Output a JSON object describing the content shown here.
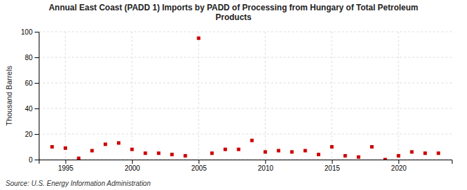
{
  "chart_data": {
    "type": "scatter",
    "title": "Annual East Coast (PADD 1) Imports by PADD of Processing from Hungary of Total Petroleum\nProducts",
    "ylabel": "Thousand Barrels",
    "source": "Source: U.S. Energy Information Administration",
    "x": [
      1994,
      1995,
      1996,
      1997,
      1998,
      1999,
      2000,
      2001,
      2002,
      2003,
      2004,
      2005,
      2006,
      2007,
      2008,
      2009,
      2010,
      2011,
      2012,
      2013,
      2014,
      2015,
      2016,
      2017,
      2018,
      2019,
      2020,
      2021,
      2022,
      2023
    ],
    "values": [
      10,
      9,
      1,
      7,
      12,
      13,
      8,
      5,
      5,
      4,
      3,
      95,
      5,
      8,
      8,
      15,
      6,
      7,
      6,
      7,
      4,
      10,
      3,
      2,
      10,
      0,
      3,
      6,
      5,
      5
    ],
    "color": "#cc0000",
    "marker": "square",
    "xlim": [
      1993.0,
      2024.0
    ],
    "ylim": [
      0,
      100
    ],
    "xticks": [
      1995,
      2000,
      2005,
      2010,
      2015,
      2020
    ],
    "yticks": [
      0,
      20,
      40,
      60,
      80,
      100
    ],
    "grid": true
  }
}
